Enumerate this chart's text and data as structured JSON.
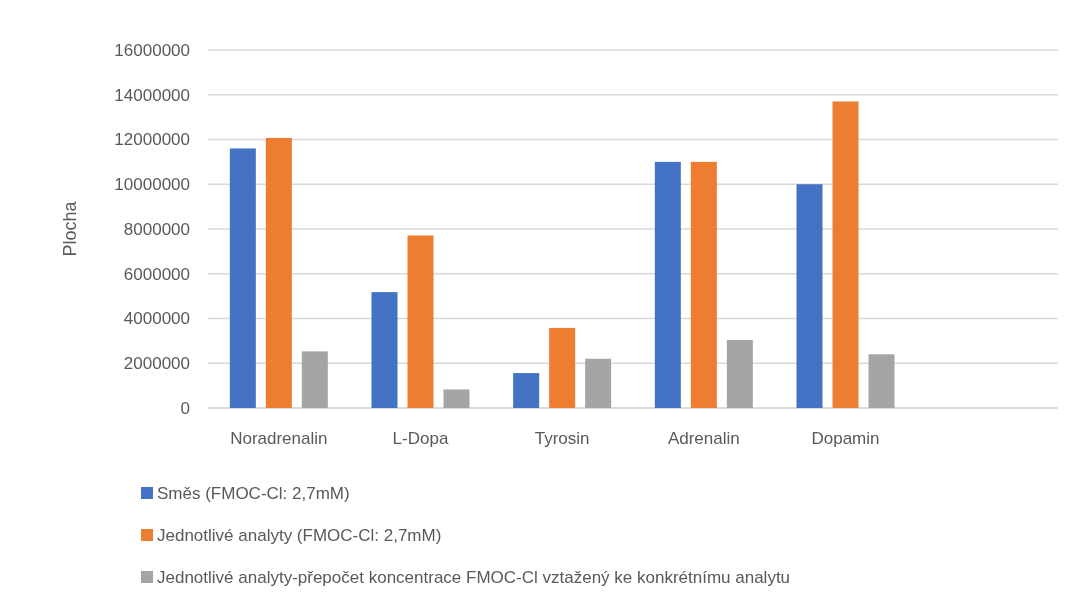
{
  "chart_data": {
    "type": "bar",
    "ylabel": "Plocha",
    "categories": [
      "Noradrenalin",
      "L-Dopa",
      "Tyrosin",
      "Adrenalin",
      "Dopamin",
      null
    ],
    "series": [
      {
        "name": "Směs (FMOC-Cl: 2,7mM)",
        "color": "#4472c4",
        "values": [
          11600000,
          5180000,
          1560000,
          11000000,
          10000000,
          null
        ]
      },
      {
        "name": "Jednotlivé analyty (FMOC-Cl: 2,7mM)",
        "color": "#ed7d31",
        "values": [
          12070000,
          7710000,
          3580000,
          11000000,
          13700000,
          null
        ]
      },
      {
        "name": "Jednotlivé analyty-přepočet koncentrace FMOC-Cl vztažený ke konkrétnímu analytu",
        "color": "#a5a5a5",
        "values": [
          2530000,
          830000,
          2200000,
          3040000,
          2400000,
          null
        ]
      }
    ],
    "ylim": [
      0,
      16000000
    ],
    "yticks": [
      0,
      2000000,
      4000000,
      6000000,
      8000000,
      10000000,
      12000000,
      14000000,
      16000000
    ],
    "grid": "y",
    "legend": "bottom"
  }
}
